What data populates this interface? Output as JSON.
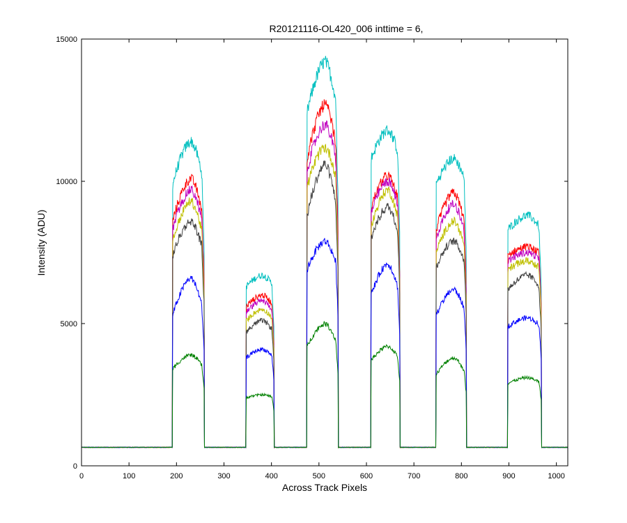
{
  "chart_data": {
    "type": "line",
    "title": "R20121116-OL420_006 inttime = 6,",
    "xlabel": "Across Track Pixels",
    "ylabel": "Intensity (ADU)",
    "xlim": [
      0,
      1024
    ],
    "ylim": [
      0,
      15000
    ],
    "x_ticks": [
      0,
      100,
      200,
      300,
      400,
      500,
      600,
      700,
      800,
      900,
      1000
    ],
    "y_ticks": [
      0,
      5000,
      10000,
      15000
    ],
    "grid": false,
    "legend": "none",
    "baseline": 650,
    "blocks": [
      {
        "x_start": 192,
        "x_end": 258
      },
      {
        "x_start": 347,
        "x_end": 405
      },
      {
        "x_start": 475,
        "x_end": 540
      },
      {
        "x_start": 610,
        "x_end": 670
      },
      {
        "x_start": 747,
        "x_end": 810
      },
      {
        "x_start": 898,
        "x_end": 968
      }
    ],
    "series": [
      {
        "color": "#00bfbf",
        "peaks": [
          11400,
          6700,
          14200,
          11800,
          10800,
          8800
        ],
        "shoulders": [
          9900,
          6300,
          12400,
          10800,
          9900,
          8300
        ]
      },
      {
        "color": "#ff0000",
        "peaks": [
          10100,
          6000,
          12700,
          10200,
          9600,
          7700
        ],
        "shoulders": [
          8600,
          5600,
          10800,
          9100,
          8300,
          7400
        ]
      },
      {
        "color": "#bf00bf",
        "peaks": [
          9700,
          5800,
          12000,
          10000,
          9200,
          7500
        ],
        "shoulders": [
          8300,
          5400,
          10400,
          8900,
          8000,
          7200
        ]
      },
      {
        "color": "#bfbf00",
        "peaks": [
          9300,
          5500,
          11200,
          9700,
          8600,
          7200
        ],
        "shoulders": [
          7900,
          5100,
          9800,
          8400,
          7500,
          6900
        ]
      },
      {
        "color": "#404040",
        "peaks": [
          8600,
          5100,
          10600,
          9100,
          7900,
          6700
        ],
        "shoulders": [
          7400,
          4700,
          8800,
          8000,
          7000,
          6200
        ]
      },
      {
        "color": "#0000ff",
        "peaks": [
          6600,
          4100,
          7900,
          7100,
          6200,
          5200
        ],
        "shoulders": [
          5300,
          3800,
          6900,
          6000,
          5300,
          4900
        ]
      },
      {
        "color": "#008000",
        "peaks": [
          3900,
          2500,
          5000,
          4200,
          3800,
          3100
        ],
        "shoulders": [
          3400,
          2400,
          4200,
          3700,
          3200,
          2900
        ]
      }
    ]
  }
}
